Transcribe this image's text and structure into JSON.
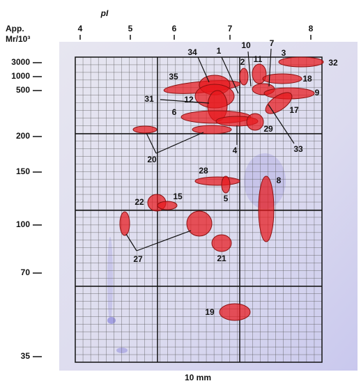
{
  "axes": {
    "top_title": "pI",
    "left_title_line1": "App.",
    "left_title_line2": "Mr/10³",
    "top_ticks": [
      "4",
      "5",
      "6",
      "7",
      "8"
    ],
    "left_ticks": [
      "3000",
      "1000",
      "500",
      "200",
      "150",
      "100",
      "70",
      "35"
    ]
  },
  "spots": [
    "34",
    "1",
    "10",
    "7",
    "3",
    "32",
    "2",
    "11",
    "18",
    "35",
    "9",
    "12",
    "31",
    "6",
    "17",
    "29",
    "33",
    "4",
    "20",
    "28",
    "8",
    "5",
    "22",
    "15",
    "27",
    "21",
    "19"
  ],
  "scale_bar": "10 mm"
}
